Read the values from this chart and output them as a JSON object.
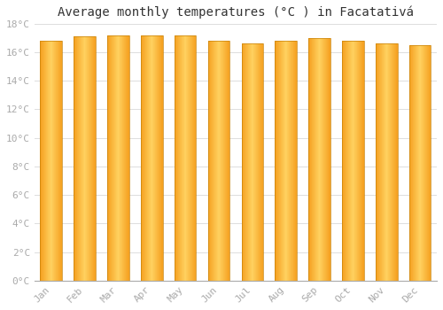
{
  "title": "Average monthly temperatures (°C ) in Facatativá",
  "months": [
    "Jan",
    "Feb",
    "Mar",
    "Apr",
    "May",
    "Jun",
    "Jul",
    "Aug",
    "Sep",
    "Oct",
    "Nov",
    "Dec"
  ],
  "values": [
    16.8,
    17.1,
    17.2,
    17.2,
    17.2,
    16.8,
    16.6,
    16.8,
    17.0,
    16.8,
    16.6,
    16.5
  ],
  "bar_center_color": "#FFD060",
  "bar_edge_color": "#F5A020",
  "bar_outline_color": "#C8830A",
  "background_color": "#FFFFFF",
  "grid_color": "#DDDDDD",
  "ylim": [
    0,
    18
  ],
  "ytick_interval": 2,
  "title_fontsize": 10,
  "tick_fontsize": 8,
  "tick_color": "#AAAAAA",
  "font_family": "monospace",
  "bar_width": 0.65
}
